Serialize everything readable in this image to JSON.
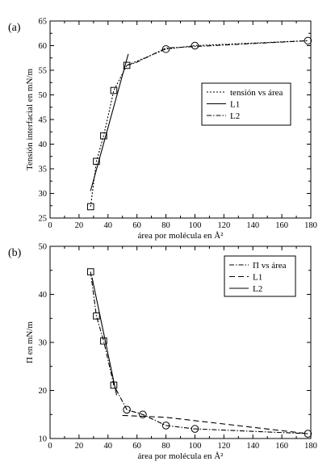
{
  "chart_data": [
    {
      "panel": "(a)",
      "type": "line",
      "xlabel": "área por molécula en Å²",
      "ylabel": "Tensión interfacial en mN/m",
      "xlim": [
        0,
        180
      ],
      "ylim": [
        25,
        65
      ],
      "xticks": [
        0,
        20,
        40,
        60,
        80,
        100,
        120,
        140,
        160,
        180
      ],
      "yticks": [
        25,
        30,
        35,
        40,
        45,
        50,
        55,
        60,
        65
      ],
      "legend_position": "right-middle",
      "series": [
        {
          "name": "tensión vs área",
          "style": "dotted",
          "x": [
            28,
            32,
            37,
            44,
            53,
            80,
            100,
            178
          ],
          "y": [
            27.3,
            36.5,
            41.7,
            50.9,
            56.0,
            59.3,
            60.0,
            61.0
          ],
          "markers": [
            "square",
            "square",
            "square",
            "square",
            "square",
            "circle",
            "circle",
            "circle"
          ]
        },
        {
          "name": "L1",
          "style": "solid",
          "x": [
            28,
            54
          ],
          "y": [
            30.5,
            58.3
          ]
        },
        {
          "name": "L2",
          "style": "dashdot",
          "x": [
            53,
            59,
            80,
            178
          ],
          "y": [
            56.0,
            56.5,
            59.5,
            61.0
          ]
        }
      ]
    },
    {
      "panel": "(b)",
      "type": "line",
      "xlabel": "área por molécula en Å²",
      "ylabel": "Π en mN/m",
      "xlim": [
        0,
        180
      ],
      "ylim": [
        10,
        50
      ],
      "xticks": [
        0,
        20,
        40,
        60,
        80,
        100,
        120,
        140,
        160,
        180
      ],
      "yticks": [
        10,
        20,
        30,
        40,
        50
      ],
      "legend_position": "top-right",
      "series": [
        {
          "name": "Π  vs área",
          "style": "dashdot",
          "x": [
            28,
            32,
            37,
            44,
            53,
            64,
            80,
            100,
            178
          ],
          "y": [
            44.7,
            35.5,
            30.3,
            21.1,
            16.0,
            15.0,
            12.7,
            12.0,
            11.0
          ],
          "markers": [
            "square",
            "square",
            "square",
            "square",
            "circle",
            "circle",
            "circle",
            "circle",
            "circle"
          ]
        },
        {
          "name": "L1",
          "style": "dashed",
          "x": [
            50,
            80,
            178
          ],
          "y": [
            14.8,
            14.4,
            11.0
          ]
        },
        {
          "name": "L2",
          "style": "solid",
          "x": [
            29,
            46
          ],
          "y": [
            43.5,
            19.0
          ]
        }
      ]
    }
  ]
}
